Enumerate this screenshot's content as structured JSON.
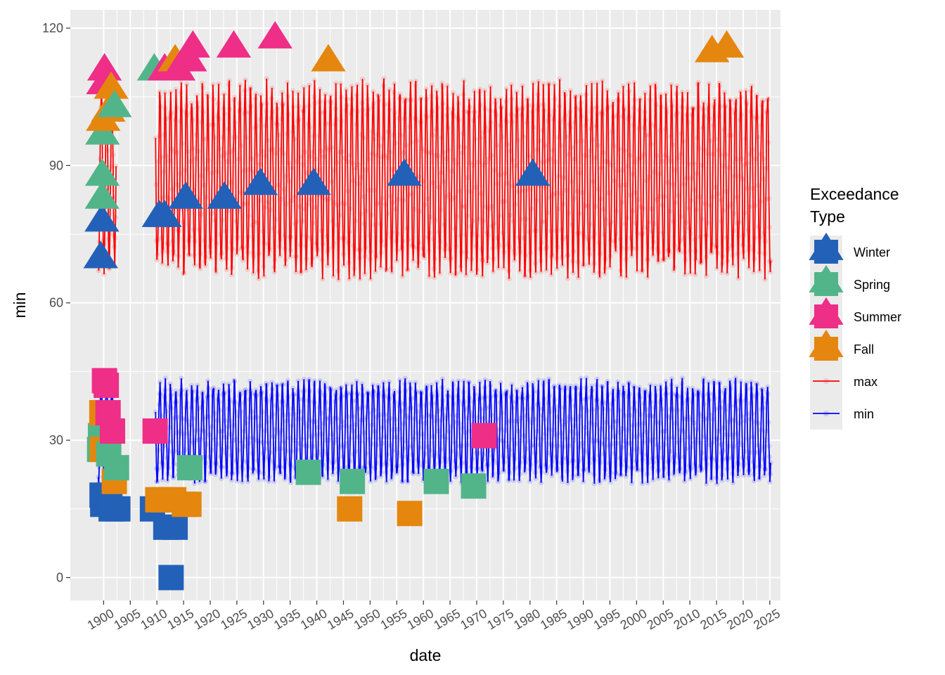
{
  "chart_data": {
    "type": "line",
    "xlabel": "date",
    "ylabel": "min",
    "x_tick_labels": [
      "1900",
      "1905",
      "1910",
      "1915",
      "1920",
      "1925",
      "1930",
      "1935",
      "1940",
      "1945",
      "1950",
      "1955",
      "1960",
      "1965",
      "1970",
      "1975",
      "1980",
      "1985",
      "1990",
      "1995",
      "2000",
      "2005",
      "2010",
      "2015",
      "2020",
      "2025"
    ],
    "y_tick_labels": [
      "0",
      "30",
      "60",
      "90",
      "120"
    ],
    "xlim": [
      "1893-10-01",
      "2026-12-31"
    ],
    "ylim": [
      -5,
      124
    ],
    "grid": true,
    "legend": {
      "title_lines": [
        "Exceedance",
        "Type"
      ],
      "placement": "right",
      "entries": [
        {
          "label": "Winter",
          "kind": "triangle+square",
          "color": "#2361b8"
        },
        {
          "label": "Spring",
          "kind": "triangle+square",
          "color": "#52b58a"
        },
        {
          "label": "Summer",
          "kind": "triangle+square",
          "color": "#ee2e87"
        },
        {
          "label": "Fall",
          "kind": "triangle+square",
          "color": "#e5860f"
        },
        {
          "label": "max",
          "kind": "line",
          "color": "#ff0000"
        },
        {
          "label": "min",
          "kind": "line",
          "color": "#0000ff"
        }
      ]
    },
    "series": [
      {
        "name": "max",
        "color": "#ff0000",
        "data_gaps": [
          [
            "1902-06-01",
            "1909-09-30"
          ]
        ],
        "data_range": [
          "1899-01-01",
          "2025-03-31"
        ],
        "seasonal_low": 68,
        "seasonal_high": 106
      },
      {
        "name": "min",
        "color": "#0000ff",
        "data_gaps": [
          [
            "1902-06-01",
            "1909-09-30"
          ]
        ],
        "data_range": [
          "1899-01-01",
          "2025-03-31"
        ],
        "seasonal_low": 22,
        "seasonal_high": 42
      }
    ],
    "max_exceedances": [
      {
        "date": "1899-06-15",
        "value": 70,
        "season": "Winter"
      },
      {
        "date": "1899-09-01",
        "value": 78,
        "season": "Winter"
      },
      {
        "date": "1899-09-15",
        "value": 83,
        "season": "Spring"
      },
      {
        "date": "1899-10-01",
        "value": 88,
        "season": "Spring"
      },
      {
        "date": "1899-10-15",
        "value": 97,
        "season": "Spring"
      },
      {
        "date": "1899-12-01",
        "value": 100,
        "season": "Fall"
      },
      {
        "date": "1899-12-15",
        "value": 108,
        "season": "Summer"
      },
      {
        "date": "1900-03-01",
        "value": 111,
        "season": "Summer"
      },
      {
        "date": "1900-11-15",
        "value": 102,
        "season": "Fall"
      },
      {
        "date": "1901-06-01",
        "value": 107,
        "season": "Fall"
      },
      {
        "date": "1902-01-15",
        "value": 103,
        "season": "Spring"
      },
      {
        "date": "1909-07-01",
        "value": 111,
        "season": "Spring"
      },
      {
        "date": "1910-06-01",
        "value": 79,
        "season": "Winter"
      },
      {
        "date": "1911-06-01",
        "value": 79,
        "season": "Winter"
      },
      {
        "date": "1911-06-15",
        "value": 111,
        "season": "Summer"
      },
      {
        "date": "1913-06-01",
        "value": 113,
        "season": "Fall"
      },
      {
        "date": "1914-01-01",
        "value": 111,
        "season": "Summer"
      },
      {
        "date": "1915-06-01",
        "value": 83,
        "season": "Winter"
      },
      {
        "date": "1916-03-01",
        "value": 113,
        "season": "Summer"
      },
      {
        "date": "1916-10-01",
        "value": 116,
        "season": "Summer"
      },
      {
        "date": "1922-09-01",
        "value": 83,
        "season": "Winter"
      },
      {
        "date": "1924-06-01",
        "value": 116,
        "season": "Summer"
      },
      {
        "date": "1929-06-01",
        "value": 86,
        "season": "Winter"
      },
      {
        "date": "1932-03-01",
        "value": 118,
        "season": "Summer"
      },
      {
        "date": "1939-06-01",
        "value": 86,
        "season": "Winter"
      },
      {
        "date": "1942-03-01",
        "value": 113,
        "season": "Fall"
      },
      {
        "date": "1956-06-01",
        "value": 88,
        "season": "Winter"
      },
      {
        "date": "1980-07-01",
        "value": 88,
        "season": "Winter"
      },
      {
        "date": "2014-03-01",
        "value": 115,
        "season": "Fall"
      },
      {
        "date": "2016-12-01",
        "value": 116,
        "season": "Fall"
      }
    ],
    "min_exceedances": [
      {
        "date": "1899-04-01",
        "value": 28,
        "season": "Spring"
      },
      {
        "date": "1899-06-01",
        "value": 31,
        "season": "Spring"
      },
      {
        "date": "1899-09-01",
        "value": 36,
        "season": "Fall"
      },
      {
        "date": "1899-10-01",
        "value": 28,
        "season": "Fall"
      },
      {
        "date": "1899-09-15",
        "value": 18,
        "season": "Winter"
      },
      {
        "date": "1899-11-01",
        "value": 16,
        "season": "Winter"
      },
      {
        "date": "1900-03-01",
        "value": 43,
        "season": "Summer"
      },
      {
        "date": "1900-07-01",
        "value": 42,
        "season": "Summer"
      },
      {
        "date": "1900-11-01",
        "value": 36,
        "season": "Summer"
      },
      {
        "date": "1900-12-15",
        "value": 27,
        "season": "Spring"
      },
      {
        "date": "1901-03-01",
        "value": 17,
        "season": "Winter"
      },
      {
        "date": "1901-06-01",
        "value": 15,
        "season": "Winter"
      },
      {
        "date": "1901-09-01",
        "value": 32,
        "season": "Summer"
      },
      {
        "date": "1902-01-01",
        "value": 21,
        "season": "Fall"
      },
      {
        "date": "1902-06-01",
        "value": 24,
        "season": "Spring"
      },
      {
        "date": "1902-09-01",
        "value": 15,
        "season": "Winter"
      },
      {
        "date": "1909-03-01",
        "value": 15,
        "season": "Winter"
      },
      {
        "date": "1909-09-01",
        "value": 32,
        "season": "Summer"
      },
      {
        "date": "1910-03-01",
        "value": 17,
        "season": "Fall"
      },
      {
        "date": "1911-03-01",
        "value": 17,
        "season": "Fall"
      },
      {
        "date": "1911-09-01",
        "value": 11,
        "season": "Winter"
      },
      {
        "date": "1912-09-01",
        "value": 0,
        "season": "Winter"
      },
      {
        "date": "1913-03-01",
        "value": 17,
        "season": "Fall"
      },
      {
        "date": "1913-06-01",
        "value": 11,
        "season": "Winter"
      },
      {
        "date": "1915-03-01",
        "value": 16,
        "season": "Fall"
      },
      {
        "date": "1916-01-01",
        "value": 16,
        "season": "Fall"
      },
      {
        "date": "1916-03-01",
        "value": 24,
        "season": "Spring"
      },
      {
        "date": "1938-06-01",
        "value": 23,
        "season": "Spring"
      },
      {
        "date": "1946-03-01",
        "value": 15,
        "season": "Fall"
      },
      {
        "date": "1946-09-01",
        "value": 21,
        "season": "Spring"
      },
      {
        "date": "1957-06-01",
        "value": 14,
        "season": "Fall"
      },
      {
        "date": "1962-06-01",
        "value": 21,
        "season": "Spring"
      },
      {
        "date": "1969-06-01",
        "value": 20,
        "season": "Spring"
      },
      {
        "date": "1971-06-01",
        "value": 31,
        "season": "Summer"
      }
    ]
  }
}
